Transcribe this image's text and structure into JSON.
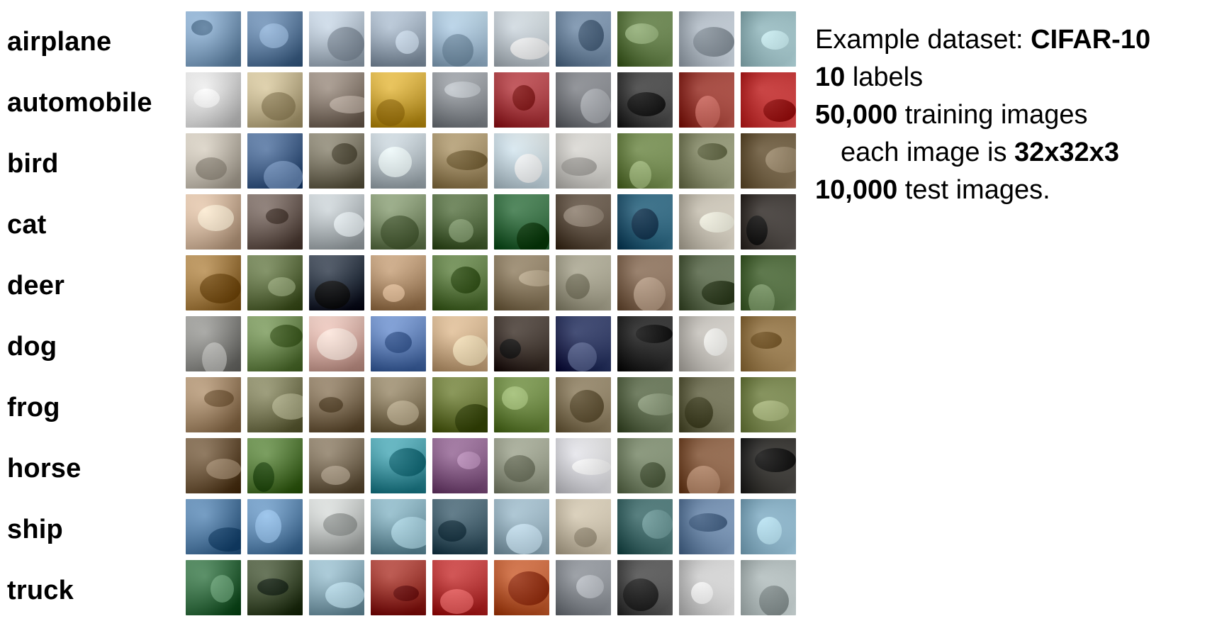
{
  "classes": [
    {
      "label": "airplane",
      "colors": [
        "#7ea3c7",
        "#5a7ea6",
        "#b8c7d6",
        "#9fb0c2",
        "#a7c5de",
        "#c9d3db",
        "#6f8aa7",
        "#5c7b3e",
        "#b9c4cf",
        "#9cc3c9"
      ]
    },
    {
      "label": "automobile",
      "colors": [
        "#e4e4e4",
        "#c9b98e",
        "#8a7b6e",
        "#d6a92d",
        "#8f949a",
        "#b2353b",
        "#7d8086",
        "#3a3a3a",
        "#a1352a",
        "#cc2a2a"
      ]
    },
    {
      "label": "bird",
      "colors": [
        "#c9c1b3",
        "#3d5f8e",
        "#7a7460",
        "#bcc8cf",
        "#a68f62",
        "#cfe2ec",
        "#d8d6d1",
        "#6f8a47",
        "#8a8f6a",
        "#6e5a3a"
      ]
    },
    {
      "label": "cat",
      "colors": [
        "#d7b89c",
        "#6b5a52",
        "#bcc4c8",
        "#7a8f65",
        "#4f6a3a",
        "#2c6c3a",
        "#5a4a3a",
        "#1e5d7a",
        "#cfc8b8",
        "#3a3430"
      ]
    },
    {
      "label": "deer",
      "colors": [
        "#a67a3a",
        "#5b6e3b",
        "#1f2a3a",
        "#b79068",
        "#587a3a",
        "#8c7a5c",
        "#a7a38c",
        "#8a6d55",
        "#5a6a4a",
        "#4a6a35"
      ]
    },
    {
      "label": "dog",
      "colors": [
        "#8a8a86",
        "#6a8a4a",
        "#e2b3a8",
        "#5a7fbf",
        "#d8b48a",
        "#3a2e26",
        "#1e2a5a",
        "#1a1a1a",
        "#cfcbc4",
        "#9c7a46"
      ]
    },
    {
      "label": "frog",
      "colors": [
        "#a58663",
        "#7a7a52",
        "#7e6a4e",
        "#8a7a5a",
        "#6a7a30",
        "#6a8a3a",
        "#8a7a5a",
        "#5a6a48",
        "#6a6a4a",
        "#7a8a4a"
      ]
    },
    {
      "label": "horse",
      "colors": [
        "#6a5032",
        "#4f7a2f",
        "#7a6a52",
        "#3a9aa8",
        "#8a5a8a",
        "#9aa08a",
        "#e4e4ea",
        "#7a8a6a",
        "#8a5a3a",
        "#2c2a26"
      ]
    },
    {
      "label": "ship",
      "colors": [
        "#4a7aa8",
        "#5a8ab8",
        "#c8ccca",
        "#7aa8b8",
        "#3a5a6a",
        "#9ab8c8",
        "#d4c8b0",
        "#3a6a6a",
        "#6a8ab0",
        "#8ab8d0"
      ]
    },
    {
      "label": "truck",
      "colors": [
        "#2a6a3a",
        "#3a4a2a",
        "#8ab0c0",
        "#a02a20",
        "#c02a2a",
        "#c85a2a",
        "#8a8f96",
        "#4a4a4a",
        "#d8d8d8",
        "#bcc8c8"
      ]
    }
  ],
  "info": {
    "line1_prefix": "Example dataset: ",
    "line1_bold": "CIFAR-10",
    "line2_bold": "10",
    "line2_suffix": " labels",
    "line3_bold": "50,000",
    "line3_suffix": " training images",
    "line4_prefix": "each image is ",
    "line4_bold": "32x32x3",
    "line5_bold": "10,000",
    "line5_suffix": " test images."
  }
}
